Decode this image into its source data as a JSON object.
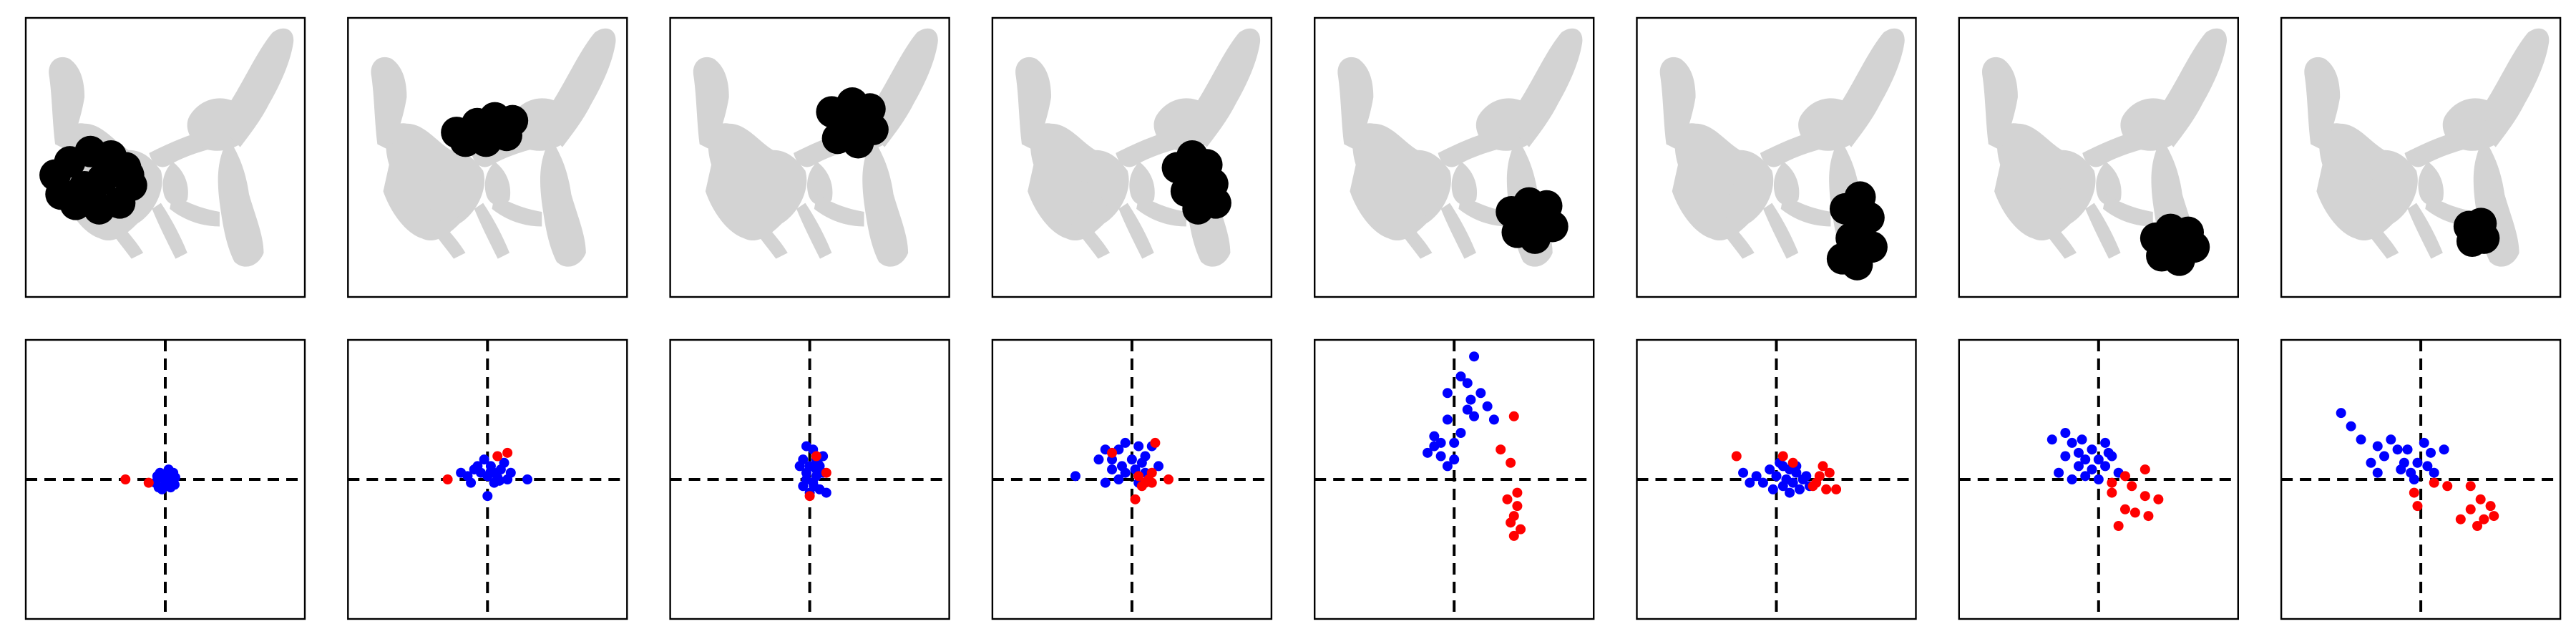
{
  "figure": {
    "title": ""
  },
  "colors": {
    "background_cells": "#d3d3d3",
    "highlight_cells": "#000000",
    "series_a": "#0000ff",
    "series_b": "#ff0000"
  },
  "chart_data": {
    "embedding_panels": [
      {
        "highlight": [
          [
            20,
            107
          ],
          [
            30,
            98
          ],
          [
            44,
            91
          ],
          [
            58,
            94
          ],
          [
            68,
            102
          ],
          [
            72,
            114
          ],
          [
            64,
            126
          ],
          [
            50,
            130
          ],
          [
            34,
            127
          ],
          [
            24,
            120
          ],
          [
            70,
            107
          ],
          [
            40,
            115
          ],
          [
            52,
            110
          ]
        ]
      },
      {
        "highlight": [
          [
            74,
            78
          ],
          [
            88,
            72
          ],
          [
            100,
            68
          ],
          [
            112,
            70
          ],
          [
            108,
            80
          ],
          [
            94,
            84
          ],
          [
            80,
            84
          ],
          [
            98,
            76
          ]
        ]
      },
      {
        "highlight": [
          [
            110,
            64
          ],
          [
            124,
            58
          ],
          [
            136,
            62
          ],
          [
            138,
            76
          ],
          [
            128,
            85
          ],
          [
            114,
            82
          ],
          [
            126,
            70
          ]
        ]
      },
      {
        "highlight": [
          [
            126,
            102
          ],
          [
            136,
            94
          ],
          [
            146,
            100
          ],
          [
            150,
            113
          ],
          [
            152,
            126
          ],
          [
            140,
            130
          ],
          [
            132,
            118
          ],
          [
            144,
            112
          ]
        ]
      },
      {
        "highlight": [
          [
            134,
            132
          ],
          [
            146,
            126
          ],
          [
            158,
            128
          ],
          [
            162,
            142
          ],
          [
            150,
            150
          ],
          [
            138,
            146
          ],
          [
            150,
            138
          ]
        ]
      },
      {
        "highlight": [
          [
            142,
            130
          ],
          [
            152,
            122
          ],
          [
            158,
            136
          ],
          [
            160,
            156
          ],
          [
            150,
            168
          ],
          [
            140,
            164
          ],
          [
            146,
            150
          ],
          [
            152,
            142
          ]
        ]
      },
      {
        "highlight": [
          [
            134,
            150
          ],
          [
            144,
            144
          ],
          [
            156,
            146
          ],
          [
            160,
            156
          ],
          [
            150,
            165
          ],
          [
            138,
            162
          ],
          [
            148,
            155
          ]
        ]
      },
      {
        "highlight": [
          [
            128,
            142
          ],
          [
            136,
            140
          ],
          [
            138,
            150
          ],
          [
            130,
            152
          ],
          [
            133,
            146
          ]
        ]
      }
    ],
    "scatter_panels": [
      {
        "blue": [
          [
            -0.15,
            -0.05
          ],
          [
            0,
            -0.02
          ],
          [
            0.1,
            0.02
          ],
          [
            0.05,
            0.12
          ],
          [
            -0.08,
            0.1
          ],
          [
            0.14,
            -0.08
          ],
          [
            -0.05,
            -0.15
          ],
          [
            0.02,
            0.05
          ],
          [
            0.08,
            -0.12
          ],
          [
            -0.12,
            0.05
          ],
          [
            0.12,
            0.1
          ],
          [
            0,
            -0.1
          ],
          [
            0.05,
            0.15
          ],
          [
            -0.02,
            0.08
          ],
          [
            0.1,
            -0.02
          ],
          [
            -0.1,
            -0.12
          ],
          [
            0.15,
            0.03
          ],
          [
            -0.05,
            0.02
          ],
          [
            0.03,
            -0.05
          ],
          [
            0.06,
            0.07
          ]
        ],
        "red": [
          [
            -0.6,
            0
          ],
          [
            -0.25,
            -0.05
          ]
        ]
      },
      {
        "blue": [
          [
            -0.4,
            0.1
          ],
          [
            -0.3,
            0.05
          ],
          [
            -0.2,
            0.15
          ],
          [
            -0.1,
            0.1
          ],
          [
            0,
            0.05
          ],
          [
            0.05,
            0.2
          ],
          [
            0.1,
            0.1
          ],
          [
            0.15,
            0.03
          ],
          [
            -0.05,
            0.3
          ],
          [
            0.2,
            0.15
          ],
          [
            0.3,
            0
          ],
          [
            0.1,
            -0.05
          ],
          [
            -0.25,
            -0.05
          ],
          [
            0.35,
            0.1
          ],
          [
            0.6,
            0
          ],
          [
            -0.15,
            0.2
          ],
          [
            0.25,
            0.25
          ],
          [
            0,
            -0.25
          ],
          [
            0.05,
            0.12
          ],
          [
            0.18,
            -0.02
          ]
        ],
        "red": [
          [
            -0.6,
            0
          ],
          [
            0.15,
            0.35
          ],
          [
            0.3,
            0.4
          ]
        ]
      },
      {
        "blue": [
          [
            -0.05,
            0.5
          ],
          [
            0.05,
            0.45
          ],
          [
            0.1,
            0.3
          ],
          [
            -0.1,
            0.3
          ],
          [
            0,
            0.2
          ],
          [
            0.15,
            0.2
          ],
          [
            -0.05,
            0.1
          ],
          [
            0.1,
            0.05
          ],
          [
            0.2,
            0.1
          ],
          [
            0.05,
            -0.05
          ],
          [
            -0.1,
            -0.1
          ],
          [
            0.15,
            -0.15
          ],
          [
            0,
            -0.2
          ],
          [
            0.25,
            -0.2
          ],
          [
            -0.15,
            0.2
          ],
          [
            0.2,
            0.35
          ],
          [
            0.1,
            0.15
          ],
          [
            -0.05,
            0
          ],
          [
            0.12,
            0.25
          ],
          [
            0.06,
            -0.1
          ]
        ],
        "red": [
          [
            0.25,
            0.1
          ],
          [
            0,
            -0.25
          ],
          [
            0.1,
            0.35
          ]
        ]
      },
      {
        "blue": [
          [
            -0.5,
            0.3
          ],
          [
            -0.4,
            0.45
          ],
          [
            -0.3,
            0.3
          ],
          [
            -0.2,
            0.45
          ],
          [
            -0.1,
            0.55
          ],
          [
            0,
            0.3
          ],
          [
            0.1,
            0.5
          ],
          [
            0.2,
            0.35
          ],
          [
            -0.3,
            0.15
          ],
          [
            -0.1,
            0.1
          ],
          [
            0.05,
            0.15
          ],
          [
            0.2,
            0.1
          ],
          [
            0.4,
            0.2
          ],
          [
            -0.2,
            0
          ],
          [
            0.1,
            -0.05
          ],
          [
            -0.85,
            0.05
          ],
          [
            -0.4,
            -0.05
          ],
          [
            0.3,
            0.5
          ],
          [
            0.15,
            0.25
          ],
          [
            -0.15,
            0.2
          ]
        ],
        "red": [
          [
            0.1,
            0.05
          ],
          [
            0.15,
            -0.1
          ],
          [
            0.25,
            0
          ],
          [
            0.3,
            0.1
          ],
          [
            0.2,
            -0.05
          ],
          [
            0.55,
            0
          ],
          [
            -0.3,
            0.4
          ],
          [
            0.35,
            0.55
          ],
          [
            0.05,
            -0.3
          ],
          [
            0.3,
            -0.05
          ]
        ]
      },
      {
        "blue": [
          [
            0.1,
            1.55
          ],
          [
            0.3,
            1.85
          ],
          [
            0.2,
            1.45
          ],
          [
            -0.1,
            1.3
          ],
          [
            0.4,
            1.3
          ],
          [
            0.5,
            1.1
          ],
          [
            0.6,
            0.9
          ],
          [
            0.3,
            0.95
          ],
          [
            0.2,
            1.05
          ],
          [
            -0.1,
            0.9
          ],
          [
            -0.3,
            0.65
          ],
          [
            -0.2,
            0.55
          ],
          [
            0.1,
            0.7
          ],
          [
            -0.4,
            0.4
          ],
          [
            -0.2,
            0.35
          ],
          [
            0,
            0.3
          ],
          [
            -0.1,
            0.2
          ],
          [
            0,
            0.55
          ],
          [
            0.25,
            1.2
          ],
          [
            -0.3,
            0.5
          ]
        ],
        "red": [
          [
            0.9,
            0.95
          ],
          [
            0.7,
            0.45
          ],
          [
            0.85,
            0.25
          ],
          [
            0.95,
            -0.2
          ],
          [
            0.8,
            -0.3
          ],
          [
            0.9,
            -0.55
          ],
          [
            1,
            -0.75
          ],
          [
            0.9,
            -0.85
          ],
          [
            0.85,
            -0.65
          ],
          [
            0.95,
            -0.4
          ]
        ]
      },
      {
        "blue": [
          [
            -0.5,
            0.1
          ],
          [
            -0.3,
            0.05
          ],
          [
            -0.1,
            0.15
          ],
          [
            0.1,
            0.2
          ],
          [
            0.2,
            0.15
          ],
          [
            0.3,
            0.1
          ],
          [
            -0.2,
            -0.05
          ],
          [
            0,
            0.05
          ],
          [
            0.15,
            0
          ],
          [
            0.25,
            -0.05
          ],
          [
            0.4,
            0
          ],
          [
            0.5,
            -0.1
          ],
          [
            0.35,
            -0.15
          ],
          [
            0.1,
            -0.1
          ],
          [
            -0.05,
            -0.15
          ],
          [
            0.2,
            -0.2
          ],
          [
            -0.4,
            -0.05
          ],
          [
            0.05,
            0.25
          ],
          [
            0.3,
            0.2
          ],
          [
            0.45,
            0.05
          ]
        ],
        "red": [
          [
            -0.6,
            0.35
          ],
          [
            0.1,
            0.35
          ],
          [
            0.25,
            0.25
          ],
          [
            0.7,
            0.2
          ],
          [
            0.8,
            0.1
          ],
          [
            0.6,
            -0.05
          ],
          [
            0.75,
            -0.15
          ],
          [
            0.9,
            -0.15
          ],
          [
            0.55,
            -0.1
          ],
          [
            0.65,
            0.05
          ]
        ]
      },
      {
        "blue": [
          [
            -0.7,
            0.6
          ],
          [
            -0.5,
            0.7
          ],
          [
            -0.4,
            0.55
          ],
          [
            -0.3,
            0.4
          ],
          [
            -0.1,
            0.45
          ],
          [
            0.1,
            0.55
          ],
          [
            -0.2,
            0.3
          ],
          [
            0,
            0.3
          ],
          [
            0.2,
            0.35
          ],
          [
            -0.5,
            0.35
          ],
          [
            -0.3,
            0.2
          ],
          [
            -0.1,
            0.15
          ],
          [
            0.1,
            0.2
          ],
          [
            -0.4,
            0
          ],
          [
            -0.2,
            0.05
          ],
          [
            0,
            0
          ],
          [
            0.3,
            0.1
          ],
          [
            -0.6,
            0.1
          ],
          [
            0.15,
            0.4
          ],
          [
            -0.25,
            0.6
          ]
        ],
        "red": [
          [
            0.2,
            -0.05
          ],
          [
            0.4,
            0.05
          ],
          [
            0.5,
            -0.1
          ],
          [
            0.7,
            0.15
          ],
          [
            0.7,
            -0.25
          ],
          [
            0.9,
            -0.3
          ],
          [
            0.4,
            -0.45
          ],
          [
            0.55,
            -0.5
          ],
          [
            0.75,
            -0.55
          ],
          [
            0.3,
            -0.7
          ],
          [
            0.2,
            -0.2
          ]
        ]
      },
      {
        "blue": [
          [
            -1.2,
            1.0
          ],
          [
            -1.05,
            0.8
          ],
          [
            -0.9,
            0.6
          ],
          [
            -0.65,
            0.5
          ],
          [
            -0.55,
            0.35
          ],
          [
            -0.35,
            0.45
          ],
          [
            -0.2,
            0.45
          ],
          [
            0.05,
            0.55
          ],
          [
            0.15,
            0.4
          ],
          [
            0.35,
            0.45
          ],
          [
            -0.25,
            0.25
          ],
          [
            -0.05,
            0.25
          ],
          [
            -0.3,
            0.15
          ],
          [
            -0.1,
            0
          ],
          [
            0.2,
            0.1
          ],
          [
            -0.65,
            0.1
          ],
          [
            -0.75,
            0.25
          ],
          [
            -0.45,
            0.6
          ],
          [
            0.1,
            0.2
          ],
          [
            -0.15,
            0.1
          ]
        ],
        "red": [
          [
            -0.1,
            -0.2
          ],
          [
            0.2,
            -0.05
          ],
          [
            0.4,
            -0.1
          ],
          [
            0.75,
            -0.1
          ],
          [
            0.9,
            -0.3
          ],
          [
            1.05,
            -0.4
          ],
          [
            0.75,
            -0.45
          ],
          [
            0.6,
            -0.6
          ],
          [
            0.95,
            -0.6
          ],
          [
            1.1,
            -0.55
          ],
          [
            0.85,
            -0.7
          ],
          [
            -0.05,
            -0.4
          ]
        ]
      }
    ]
  }
}
